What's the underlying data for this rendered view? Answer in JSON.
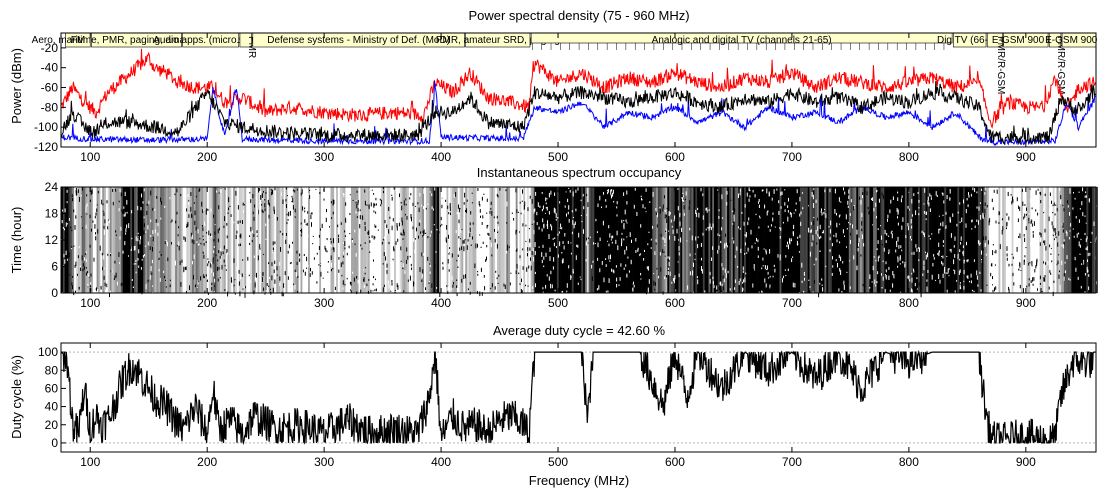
{
  "chart_data": [
    {
      "type": "line",
      "title": "Power spectral density (75 - 960 MHz)",
      "xlabel": "",
      "ylabel": "Power (dBm)",
      "xlim": [
        75,
        960
      ],
      "ylim": [
        -120,
        -5
      ],
      "xticks": [
        "100",
        "200",
        "300",
        "400",
        "500",
        "600",
        "700",
        "800",
        "900"
      ],
      "yticks": [
        "-20",
        "-40",
        "-60",
        "-80",
        "-100",
        "-120"
      ],
      "colors": {
        "max": "#ff0000",
        "mean": "#000000",
        "min": "#0000ff"
      },
      "series": [
        {
          "name": "",
          "color": "#ff0000",
          "x": [
            75,
            85,
            95,
            105,
            115,
            125,
            135,
            145,
            150,
            155,
            165,
            175,
            190,
            205,
            215,
            230,
            250,
            270,
            300,
            330,
            360,
            385,
            395,
            410,
            425,
            440,
            460,
            475,
            480,
            500,
            520,
            540,
            560,
            580,
            600,
            620,
            640,
            660,
            680,
            700,
            720,
            740,
            760,
            780,
            800,
            820,
            840,
            860,
            870,
            885,
            900,
            915,
            925,
            935,
            945,
            960
          ],
          "y": [
            -80,
            -60,
            -75,
            -85,
            -65,
            -55,
            -45,
            -35,
            -30,
            -40,
            -45,
            -55,
            -60,
            -60,
            -75,
            -70,
            -85,
            -80,
            -85,
            -88,
            -85,
            -88,
            -55,
            -65,
            -45,
            -70,
            -75,
            -80,
            -35,
            -55,
            -45,
            -60,
            -50,
            -55,
            -45,
            -55,
            -60,
            -50,
            -55,
            -45,
            -60,
            -50,
            -55,
            -60,
            -55,
            -50,
            -60,
            -55,
            -95,
            -75,
            -80,
            -80,
            -50,
            -85,
            -60,
            -55
          ]
        },
        {
          "name": "",
          "color": "#000000",
          "x": [
            75,
            85,
            95,
            105,
            115,
            135,
            155,
            175,
            200,
            215,
            230,
            260,
            300,
            340,
            380,
            395,
            410,
            425,
            440,
            470,
            480,
            500,
            520,
            540,
            560,
            580,
            600,
            620,
            640,
            660,
            680,
            700,
            720,
            740,
            760,
            780,
            800,
            820,
            840,
            860,
            870,
            900,
            920,
            930,
            945,
            960
          ],
          "y": [
            -105,
            -85,
            -100,
            -105,
            -95,
            -95,
            -100,
            -105,
            -65,
            -95,
            -100,
            -105,
            -108,
            -108,
            -108,
            -85,
            -85,
            -70,
            -95,
            -100,
            -65,
            -70,
            -65,
            -70,
            -75,
            -70,
            -65,
            -75,
            -80,
            -70,
            -75,
            -65,
            -75,
            -70,
            -80,
            -70,
            -75,
            -65,
            -70,
            -80,
            -110,
            -110,
            -110,
            -70,
            -85,
            -60
          ]
        },
        {
          "name": "",
          "color": "#0000ff",
          "x": [
            75,
            100,
            150,
            200,
            205,
            215,
            225,
            230,
            300,
            390,
            395,
            400,
            470,
            480,
            500,
            520,
            540,
            560,
            580,
            600,
            620,
            640,
            660,
            680,
            700,
            720,
            740,
            760,
            780,
            800,
            820,
            840,
            860,
            870,
            900,
            925,
            935,
            945,
            960
          ],
          "y": [
            -110,
            -112,
            -113,
            -112,
            -60,
            -110,
            -60,
            -112,
            -114,
            -114,
            -60,
            -110,
            -112,
            -80,
            -85,
            -75,
            -100,
            -85,
            -90,
            -80,
            -95,
            -85,
            -100,
            -80,
            -90,
            -85,
            -95,
            -80,
            -90,
            -85,
            -100,
            -85,
            -110,
            -115,
            -115,
            -114,
            -75,
            -100,
            -70
          ]
        }
      ],
      "bands": [
        {
          "label": "FM"
        },
        {
          "label": "Aero, maritime, PMR, paging, amateur, satellite"
        },
        {
          "label": "Audio apps. (micro.broad)"
        },
        {
          "label": "PMR"
        },
        {
          "label": "Defense systems - Ministry of Def. (MoD)"
        },
        {
          "label": "PMR, amateur SRD, paging"
        },
        {
          "label": "Analogic and digital TV (channels 21-65)"
        },
        {
          "label": "Dig TV (66-69)"
        },
        {
          "label": "PMR/R-GSM"
        },
        {
          "label": "E-GSM 900 UL"
        },
        {
          "label": "PMR/R-GSM"
        },
        {
          "label": "E-GSM 900 DL"
        }
      ]
    },
    {
      "type": "heatmap",
      "title": "Instantaneous spectrum occupancy",
      "xlabel": "",
      "ylabel": "Time (hour)",
      "xlim": [
        75,
        960
      ],
      "ylim": [
        0,
        24
      ],
      "xticks": [
        "100",
        "200",
        "300",
        "400",
        "500",
        "600",
        "700",
        "800",
        "900"
      ],
      "yticks": [
        "24",
        "18",
        "12",
        "6",
        "0"
      ]
    },
    {
      "type": "line",
      "title": "Average duty cycle = 42.60 %",
      "xlabel": "Frequency (MHz)",
      "ylabel": "Duty cycle (%)",
      "xlim": [
        75,
        960
      ],
      "ylim": [
        -10,
        110
      ],
      "xticks": [
        "100",
        "200",
        "300",
        "400",
        "500",
        "600",
        "700",
        "800",
        "900"
      ],
      "yticks": [
        "100",
        "80",
        "60",
        "40",
        "20",
        "0"
      ],
      "series": [
        {
          "name": "",
          "color": "#000000",
          "x": [
            75,
            80,
            85,
            90,
            95,
            100,
            105,
            110,
            115,
            120,
            125,
            130,
            135,
            140,
            145,
            150,
            155,
            160,
            165,
            170,
            175,
            180,
            190,
            200,
            205,
            210,
            220,
            230,
            240,
            260,
            280,
            300,
            320,
            340,
            360,
            380,
            390,
            395,
            400,
            410,
            420,
            430,
            440,
            450,
            460,
            470,
            475,
            480,
            500,
            520,
            525,
            530,
            550,
            570,
            590,
            600,
            610,
            620,
            640,
            660,
            680,
            700,
            720,
            740,
            760,
            780,
            800,
            820,
            840,
            860,
            865,
            870,
            880,
            900,
            920,
            925,
            930,
            940,
            950,
            960
          ],
          "y": [
            100,
            95,
            20,
            10,
            60,
            15,
            30,
            20,
            25,
            40,
            60,
            75,
            85,
            80,
            70,
            60,
            50,
            45,
            40,
            30,
            20,
            15,
            40,
            10,
            60,
            15,
            25,
            10,
            30,
            15,
            20,
            10,
            25,
            10,
            15,
            10,
            50,
            100,
            5,
            30,
            15,
            20,
            10,
            25,
            30,
            20,
            10,
            100,
            100,
            100,
            25,
            100,
            100,
            100,
            40,
            100,
            50,
            100,
            60,
            100,
            80,
            100,
            70,
            100,
            60,
            100,
            90,
            100,
            100,
            100,
            40,
            5,
            3,
            8,
            2,
            5,
            50,
            90,
            90,
            90
          ]
        }
      ]
    }
  ]
}
